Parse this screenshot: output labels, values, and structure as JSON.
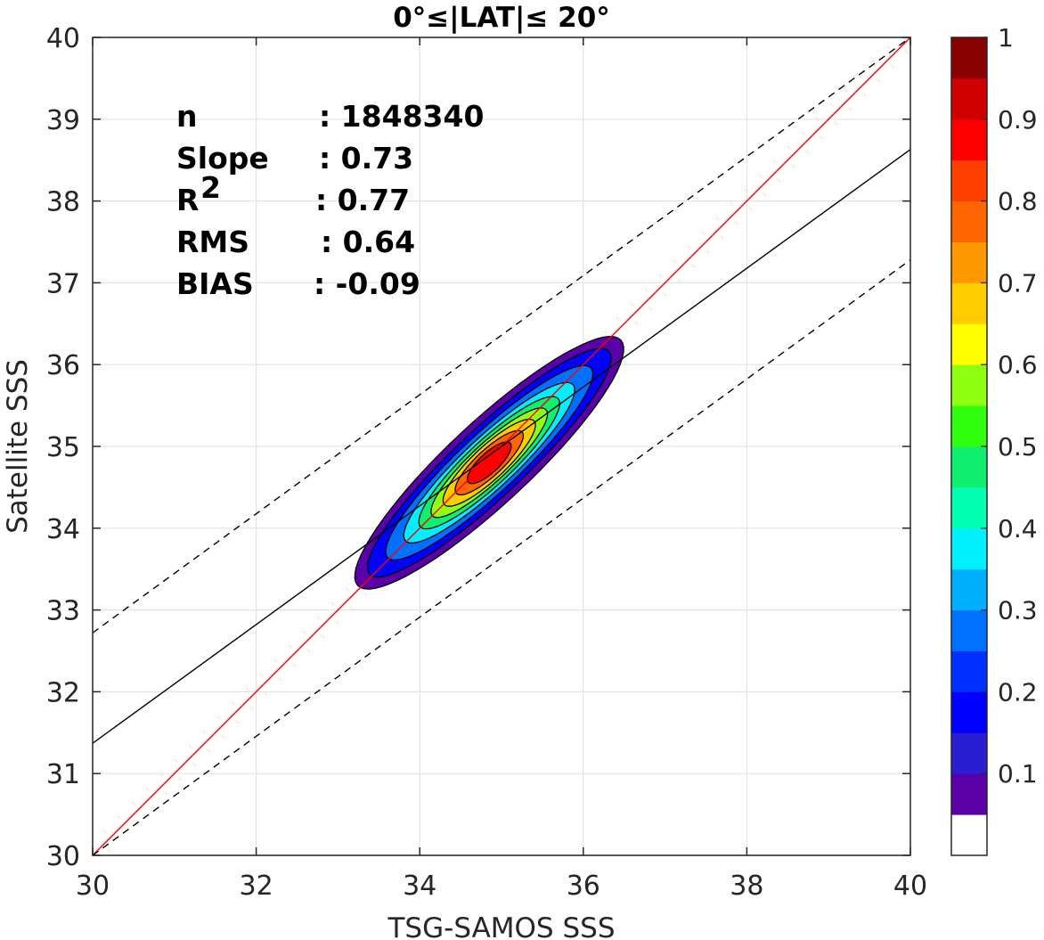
{
  "chart_data": {
    "type": "heatmap",
    "subtype": "density-contour-scatter",
    "title": "0°≤|LAT|≤ 20°",
    "xlabel": "TSG-SAMOS SSS",
    "ylabel": "Satellite SSS",
    "xlim": [
      30,
      40
    ],
    "ylim": [
      30,
      40
    ],
    "xticks": [
      "30",
      "32",
      "34",
      "36",
      "38",
      "40"
    ],
    "yticks": [
      "30",
      "31",
      "32",
      "33",
      "34",
      "35",
      "36",
      "37",
      "38",
      "39",
      "40"
    ],
    "grid": true,
    "stats": [
      {
        "label": "n",
        "value": ": 1848340"
      },
      {
        "label": "Slope",
        "value": ": 0.73"
      },
      {
        "label": "R",
        "sup": "2",
        "value": ": 0.77"
      },
      {
        "label": "RMS",
        "value": ": 0.64"
      },
      {
        "label": "BIAS",
        "value": ": -0.09"
      }
    ],
    "lines": [
      {
        "role": "one-to-one",
        "color": "#ff0000",
        "dash": false,
        "x": [
          30,
          40
        ],
        "y": [
          30,
          40
        ]
      },
      {
        "role": "regression",
        "color": "#000000",
        "dash": false,
        "x": [
          30,
          40
        ],
        "y": [
          31.37,
          38.63
        ]
      },
      {
        "role": "upper-bound",
        "color": "#000000",
        "dash": true,
        "x": [
          30,
          40
        ],
        "y": [
          32.72,
          40.0
        ]
      },
      {
        "role": "lower-bound",
        "color": "#000000",
        "dash": true,
        "x": [
          30,
          40
        ],
        "y": [
          30.0,
          37.28
        ]
      }
    ],
    "density": {
      "center": [
        34.85,
        34.8
      ],
      "angle_deg": 43,
      "levels": [
        {
          "level": 0.05,
          "semi_major": 2.2,
          "semi_minor": 0.5
        },
        {
          "level": 0.15,
          "semi_major": 2.0,
          "semi_minor": 0.42
        },
        {
          "level": 0.25,
          "semi_major": 1.7,
          "semi_minor": 0.36
        },
        {
          "level": 0.35,
          "semi_major": 1.4,
          "semi_minor": 0.31
        },
        {
          "level": 0.45,
          "semi_major": 1.15,
          "semi_minor": 0.27
        },
        {
          "level": 0.55,
          "semi_major": 0.95,
          "semi_minor": 0.23
        },
        {
          "level": 0.65,
          "semi_major": 0.75,
          "semi_minor": 0.2
        },
        {
          "level": 0.75,
          "semi_major": 0.55,
          "semi_minor": 0.16
        },
        {
          "level": 0.85,
          "semi_major": 0.35,
          "semi_minor": 0.12
        }
      ]
    },
    "colorbar": {
      "range": [
        0,
        1
      ],
      "ticks": [
        "0.1",
        "0.2",
        "0.3",
        "0.4",
        "0.5",
        "0.6",
        "0.7",
        "0.8",
        "0.9",
        "1"
      ],
      "tick_values": [
        0.1,
        0.2,
        0.3,
        0.4,
        0.5,
        0.6,
        0.7,
        0.8,
        0.9,
        1.0
      ],
      "colors": [
        "#ffffff",
        "#5a00a8",
        "#2a1ed0",
        "#0000ff",
        "#0030ff",
        "#0070ff",
        "#00b0ff",
        "#00f0ff",
        "#00ffb0",
        "#10f070",
        "#30ff10",
        "#90ff10",
        "#ffff00",
        "#ffcc00",
        "#ff9900",
        "#ff6600",
        "#ff4000",
        "#ff0000",
        "#d00000",
        "#8b0000"
      ]
    }
  }
}
